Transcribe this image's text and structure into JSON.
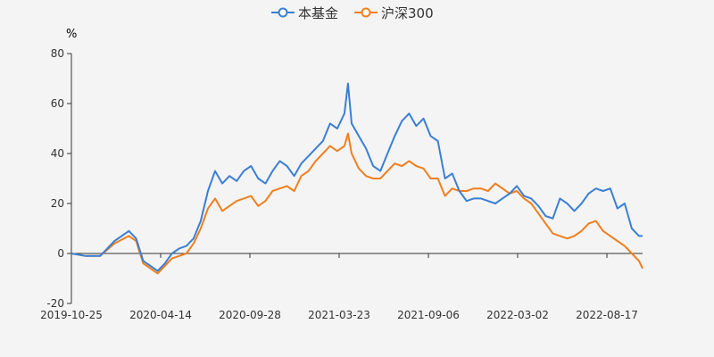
{
  "chart_data": {
    "type": "line",
    "ylabel": "%",
    "ylim": [
      -20,
      80
    ],
    "yticks": [
      -20,
      0,
      20,
      40,
      60,
      80
    ],
    "xtick_labels": [
      "2019-10-25",
      "2020-04-14",
      "2020-09-28",
      "2021-03-23",
      "2021-09-06",
      "2022-03-02",
      "2022-08-17"
    ],
    "x_count": 160,
    "legend_position": "top-center",
    "series": [
      {
        "name": "本基金",
        "color": "#3b7fd4",
        "points": [
          [
            0,
            0
          ],
          [
            4,
            -1
          ],
          [
            8,
            -1
          ],
          [
            12,
            5
          ],
          [
            16,
            9
          ],
          [
            18,
            6
          ],
          [
            20,
            -3
          ],
          [
            22,
            -5
          ],
          [
            24,
            -7
          ],
          [
            26,
            -4
          ],
          [
            28,
            0
          ],
          [
            30,
            2
          ],
          [
            32,
            3
          ],
          [
            34,
            6
          ],
          [
            36,
            13
          ],
          [
            38,
            25
          ],
          [
            40,
            33
          ],
          [
            42,
            28
          ],
          [
            44,
            31
          ],
          [
            46,
            29
          ],
          [
            48,
            33
          ],
          [
            50,
            35
          ],
          [
            52,
            30
          ],
          [
            54,
            28
          ],
          [
            56,
            33
          ],
          [
            58,
            37
          ],
          [
            60,
            35
          ],
          [
            62,
            31
          ],
          [
            64,
            36
          ],
          [
            66,
            39
          ],
          [
            68,
            42
          ],
          [
            70,
            45
          ],
          [
            72,
            52
          ],
          [
            74,
            50
          ],
          [
            76,
            56
          ],
          [
            77,
            68
          ],
          [
            78,
            52
          ],
          [
            80,
            47
          ],
          [
            82,
            42
          ],
          [
            84,
            35
          ],
          [
            86,
            33
          ],
          [
            88,
            40
          ],
          [
            90,
            47
          ],
          [
            92,
            53
          ],
          [
            94,
            56
          ],
          [
            96,
            51
          ],
          [
            98,
            54
          ],
          [
            100,
            47
          ],
          [
            102,
            45
          ],
          [
            104,
            30
          ],
          [
            106,
            32
          ],
          [
            108,
            25
          ],
          [
            110,
            21
          ],
          [
            112,
            22
          ],
          [
            114,
            22
          ],
          [
            116,
            21
          ],
          [
            118,
            20
          ],
          [
            120,
            22
          ],
          [
            122,
            24
          ],
          [
            124,
            27
          ],
          [
            126,
            23
          ],
          [
            128,
            22
          ],
          [
            130,
            19
          ],
          [
            132,
            15
          ],
          [
            134,
            14
          ],
          [
            136,
            22
          ],
          [
            138,
            20
          ],
          [
            140,
            17
          ],
          [
            142,
            20
          ],
          [
            144,
            24
          ],
          [
            146,
            26
          ],
          [
            148,
            25
          ],
          [
            150,
            26
          ],
          [
            152,
            18
          ],
          [
            154,
            20
          ],
          [
            156,
            10
          ],
          [
            158,
            7
          ],
          [
            159,
            7
          ]
        ]
      },
      {
        "name": "沪深300",
        "color": "#f07f1e",
        "points": [
          [
            0,
            0
          ],
          [
            4,
            -1
          ],
          [
            8,
            -1
          ],
          [
            12,
            4
          ],
          [
            16,
            7
          ],
          [
            18,
            5
          ],
          [
            20,
            -4
          ],
          [
            22,
            -6
          ],
          [
            24,
            -8
          ],
          [
            26,
            -5
          ],
          [
            28,
            -2
          ],
          [
            30,
            -1
          ],
          [
            32,
            0
          ],
          [
            34,
            4
          ],
          [
            36,
            10
          ],
          [
            38,
            18
          ],
          [
            40,
            22
          ],
          [
            42,
            17
          ],
          [
            44,
            19
          ],
          [
            46,
            21
          ],
          [
            48,
            22
          ],
          [
            50,
            23
          ],
          [
            52,
            19
          ],
          [
            54,
            21
          ],
          [
            56,
            25
          ],
          [
            58,
            26
          ],
          [
            60,
            27
          ],
          [
            62,
            25
          ],
          [
            64,
            31
          ],
          [
            66,
            33
          ],
          [
            68,
            37
          ],
          [
            70,
            40
          ],
          [
            72,
            43
          ],
          [
            74,
            41
          ],
          [
            76,
            43
          ],
          [
            77,
            48
          ],
          [
            78,
            40
          ],
          [
            80,
            34
          ],
          [
            82,
            31
          ],
          [
            84,
            30
          ],
          [
            86,
            30
          ],
          [
            88,
            33
          ],
          [
            90,
            36
          ],
          [
            92,
            35
          ],
          [
            94,
            37
          ],
          [
            96,
            35
          ],
          [
            98,
            34
          ],
          [
            100,
            30
          ],
          [
            102,
            30
          ],
          [
            104,
            23
          ],
          [
            106,
            26
          ],
          [
            108,
            25
          ],
          [
            110,
            25
          ],
          [
            112,
            26
          ],
          [
            114,
            26
          ],
          [
            116,
            25
          ],
          [
            118,
            28
          ],
          [
            120,
            26
          ],
          [
            122,
            24
          ],
          [
            124,
            25
          ],
          [
            126,
            22
          ],
          [
            128,
            20
          ],
          [
            130,
            16
          ],
          [
            132,
            12
          ],
          [
            134,
            8
          ],
          [
            136,
            7
          ],
          [
            138,
            6
          ],
          [
            140,
            7
          ],
          [
            142,
            9
          ],
          [
            144,
            12
          ],
          [
            146,
            13
          ],
          [
            148,
            9
          ],
          [
            150,
            7
          ],
          [
            152,
            5
          ],
          [
            154,
            3
          ],
          [
            156,
            0
          ],
          [
            158,
            -3
          ],
          [
            159,
            -6
          ]
        ]
      }
    ]
  }
}
